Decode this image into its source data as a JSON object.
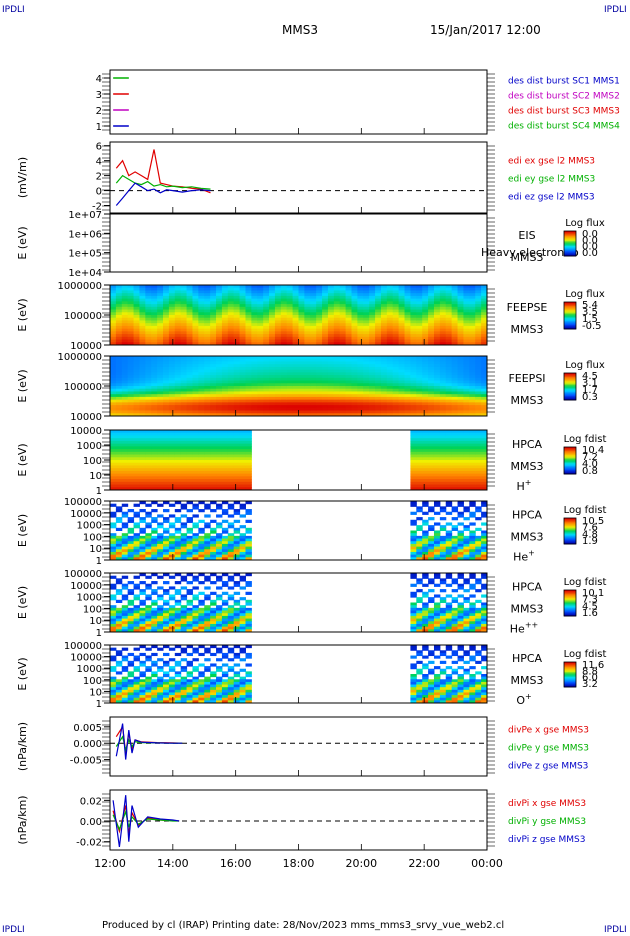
{
  "corner_left": "IPDLI",
  "corner_right": "IPDLI",
  "header": {
    "spacecraft": "MMS3",
    "date": "15/Jan/2017 12:00"
  },
  "footer": "Produced by cl (IRAP)   Printing date: 28/Nov/2023   mms_mms3_srvy_vue_web2.cl",
  "colors": {
    "red": "#e00000",
    "green": "#00b000",
    "blue": "#0000c8",
    "magenta": "#c000c0"
  },
  "chart_data": {
    "type": "line",
    "x_range": [
      "12:00",
      "00:00"
    ],
    "x_ticks": [
      "12:00",
      "14:00",
      "16:00",
      "18:00",
      "20:00",
      "22:00",
      "00:00"
    ],
    "panels": [
      {
        "id": "burst",
        "type": "line",
        "ylabel": "",
        "ylim": [
          0.5,
          4.5
        ],
        "yticks": [
          "4",
          "3",
          "2",
          "1"
        ],
        "legend": [
          {
            "text": "des dist burst SC1 MMS1",
            "color": "#0000c8"
          },
          {
            "text": "des dist burst SC2 MMS2",
            "color": "#c000c0"
          },
          {
            "text": "des dist burst SC3 MMS3",
            "color": "#e00000"
          },
          {
            "text": "des dist burst SC4 MMS4",
            "color": "#00b000"
          }
        ],
        "series": [
          {
            "name": "des dist burst SC4 MMS4",
            "color": "#00b000",
            "level": 4,
            "x": [
              12.1,
              12.6
            ]
          },
          {
            "name": "des dist burst SC3 MMS3",
            "color": "#e00000",
            "level": 3,
            "x": [
              12.1,
              12.6
            ]
          },
          {
            "name": "des dist burst SC2 MMS2",
            "color": "#c000c0",
            "level": 2,
            "x": [
              12.1,
              12.6
            ]
          },
          {
            "name": "des dist burst SC1 MMS1",
            "color": "#0000c8",
            "level": 1,
            "x": [
              12.1,
              12.6
            ]
          }
        ]
      },
      {
        "id": "edi",
        "type": "line",
        "ylabel": "(mV/m)",
        "ylim": [
          -3,
          6.5
        ],
        "yticks": [
          "6",
          "4",
          "2",
          "0",
          "-2"
        ],
        "legend": [
          {
            "text": "edi ex gse l2 MMS3",
            "color": "#e00000"
          },
          {
            "text": "edi ey gse l2 MMS3",
            "color": "#00b000"
          },
          {
            "text": "edi ez gse l2 MMS3",
            "color": "#0000c8"
          }
        ],
        "series": [
          {
            "name": "edi ex gse l2 MMS3",
            "color": "#e00000",
            "x": [
              12.2,
              12.4,
              12.6,
              12.8,
              13.0,
              13.2,
              13.4,
              13.6,
              13.8,
              14.0,
              14.3,
              14.6,
              14.9,
              15.2
            ],
            "y": [
              3,
              4,
              2,
              2.5,
              2,
              1.5,
              5.5,
              1,
              0.8,
              0.6,
              0.5,
              0.3,
              0.2,
              -0.3
            ]
          },
          {
            "name": "edi ey gse l2 MMS3",
            "color": "#00b000",
            "x": [
              12.2,
              12.4,
              12.6,
              12.8,
              13.0,
              13.2,
              13.4,
              13.6,
              13.8,
              14.0,
              14.3,
              14.6,
              14.9,
              15.2
            ],
            "y": [
              1,
              2,
              1.5,
              1,
              0.8,
              1.2,
              0.6,
              0.8,
              0.5,
              0.6,
              0.4,
              0.5,
              0.3,
              0.2
            ]
          },
          {
            "name": "edi ez gse l2 MMS3",
            "color": "#0000c8",
            "x": [
              12.2,
              12.4,
              12.6,
              12.8,
              13.0,
              13.2,
              13.4,
              13.6,
              13.8,
              14.0,
              14.3,
              14.6,
              14.9,
              15.2
            ],
            "y": [
              -2,
              -1,
              0,
              1,
              0.5,
              0,
              0.2,
              -0.3,
              0.1,
              0,
              -0.2,
              0,
              0.1,
              0
            ]
          }
        ]
      },
      {
        "id": "eis",
        "type": "heatmap",
        "ylabel": "E (eV)",
        "yticks": [
          "1e+07",
          "1e+06",
          "1e+05",
          "1e+04"
        ],
        "label_lines": [
          "EIS",
          "MMS3"
        ],
        "overlay": "Heavy electron to",
        "cbar_title": "Log flux",
        "cbar_ticks": [
          "0.0",
          "0.0",
          "0.0",
          "0.0"
        ],
        "empty": true
      },
      {
        "id": "feepse",
        "type": "heatmap",
        "ylabel": "E (eV)",
        "yticks": [
          "1000000",
          "100000",
          "10000"
        ],
        "label_lines": [
          "FEEPSE",
          "MMS3"
        ],
        "cbar_title": "Log flux",
        "cbar_ticks": [
          "5.4",
          "3.5",
          "1.5",
          "-0.5"
        ]
      },
      {
        "id": "feepsi",
        "type": "heatmap",
        "ylabel": "E (eV)",
        "yticks": [
          "1000000",
          "100000",
          "10000"
        ],
        "label_lines": [
          "FEEPSI",
          "MMS3"
        ],
        "cbar_title": "Log flux",
        "cbar_ticks": [
          "4.5",
          "3.1",
          "1.7",
          "0.3"
        ]
      },
      {
        "id": "hpca_h",
        "type": "heatmap",
        "ylabel": "E (eV)",
        "yticks": [
          "10000",
          "1000",
          "100",
          "10",
          "1"
        ],
        "label_lines": [
          "HPCA",
          "MMS3"
        ],
        "species": "H",
        "species_sup": "+",
        "cbar_title": "Log fdist",
        "cbar_ticks": [
          "10.4",
          "7.2",
          "4.0",
          "0.8"
        ],
        "data_ranges": [
          [
            "12:00",
            "16:30"
          ],
          [
            "21:30",
            "00:00"
          ]
        ]
      },
      {
        "id": "hpca_he",
        "type": "heatmap",
        "ylabel": "E (eV)",
        "yticks": [
          "100000",
          "10000",
          "1000",
          "100",
          "10",
          "1"
        ],
        "label_lines": [
          "HPCA",
          "MMS3"
        ],
        "species": "He",
        "species_sup": "+",
        "cbar_title": "Log fdist",
        "cbar_ticks": [
          "10.5",
          "7.6",
          "4.8",
          "1.9"
        ],
        "data_ranges": [
          [
            "12:00",
            "16:30"
          ],
          [
            "21:30",
            "00:00"
          ]
        ]
      },
      {
        "id": "hpca_hepp",
        "type": "heatmap",
        "ylabel": "E (eV)",
        "yticks": [
          "100000",
          "10000",
          "1000",
          "100",
          "10",
          "1"
        ],
        "label_lines": [
          "HPCA",
          "MMS3"
        ],
        "species": "He",
        "species_sup": "++",
        "cbar_title": "Log fdist",
        "cbar_ticks": [
          "10.1",
          "7.3",
          "4.5",
          "1.6"
        ],
        "data_ranges": [
          [
            "12:00",
            "16:30"
          ],
          [
            "21:30",
            "00:00"
          ]
        ]
      },
      {
        "id": "hpca_o",
        "type": "heatmap",
        "ylabel": "E (eV)",
        "yticks": [
          "100000",
          "10000",
          "1000",
          "100",
          "10",
          "1"
        ],
        "label_lines": [
          "HPCA",
          "MMS3"
        ],
        "species": "O",
        "species_sup": "+",
        "cbar_title": "Log fdist",
        "cbar_ticks": [
          "11.6",
          "8.8",
          "6.0",
          "3.2"
        ],
        "data_ranges": [
          [
            "12:00",
            "16:30"
          ],
          [
            "21:30",
            "00:00"
          ]
        ]
      },
      {
        "id": "divpe",
        "type": "line",
        "ylabel": "(nPa/km)",
        "ylim": [
          -0.01,
          0.008
        ],
        "yticks": [
          "0.005",
          "0.000",
          "-0.005"
        ],
        "legend": [
          {
            "text": "divPe x gse MMS3",
            "color": "#e00000"
          },
          {
            "text": "divPe y gse MMS3",
            "color": "#00b000"
          },
          {
            "text": "divPe z gse MMS3",
            "color": "#0000c8"
          }
        ],
        "series": [
          {
            "name": "divPe x gse MMS3",
            "color": "#e00000",
            "x": [
              12.2,
              12.4,
              12.5,
              12.6,
              12.7,
              12.8,
              13.0,
              13.5,
              14.0,
              14.3
            ],
            "y": [
              0.002,
              0.005,
              -0.003,
              0.003,
              -0.002,
              0.001,
              0.0004,
              0.0002,
              0.0001,
              0
            ]
          },
          {
            "name": "divPe y gse MMS3",
            "color": "#00b000",
            "x": [
              12.2,
              12.4,
              12.5,
              12.6,
              12.7,
              12.8,
              13.0,
              13.5,
              14.0,
              14.3
            ],
            "y": [
              -0.001,
              0.002,
              -0.002,
              0.001,
              -0.001,
              0.0005,
              0.0002,
              0.0001,
              0,
              0
            ]
          },
          {
            "name": "divPe z gse MMS3",
            "color": "#0000c8",
            "x": [
              12.2,
              12.4,
              12.5,
              12.6,
              12.7,
              12.8,
              13.0,
              13.5,
              14.0,
              14.3
            ],
            "y": [
              -0.004,
              0.006,
              -0.005,
              0.004,
              -0.003,
              0.001,
              0.0003,
              0.0001,
              0,
              0
            ]
          }
        ]
      },
      {
        "id": "divpi",
        "type": "line",
        "ylabel": "(nPa/km)",
        "ylim": [
          -0.028,
          0.03
        ],
        "yticks": [
          "0.02",
          "0.00",
          "-0.02"
        ],
        "legend": [
          {
            "text": "divPi x gse MMS3",
            "color": "#e00000"
          },
          {
            "text": "divPi y gse MMS3",
            "color": "#00b000"
          },
          {
            "text": "divPi z gse MMS3",
            "color": "#0000c8"
          }
        ],
        "series": [
          {
            "name": "divPi x gse MMS3",
            "color": "#e00000",
            "x": [
              12.1,
              12.3,
              12.5,
              12.6,
              12.7,
              12.9,
              13.2,
              13.6,
              14.0,
              14.2
            ],
            "y": [
              0.01,
              -0.01,
              0.015,
              -0.012,
              0.008,
              -0.004,
              0.003,
              0.001,
              0.0005,
              0
            ]
          },
          {
            "name": "divPi y gse MMS3",
            "color": "#00b000",
            "x": [
              12.1,
              12.3,
              12.5,
              12.6,
              12.7,
              12.9,
              13.2,
              13.6,
              14.0,
              14.2
            ],
            "y": [
              0.006,
              -0.008,
              0.009,
              -0.006,
              0.004,
              -0.003,
              0.002,
              0.001,
              0,
              0
            ]
          },
          {
            "name": "divPi z gse MMS3",
            "color": "#0000c8",
            "x": [
              12.1,
              12.3,
              12.5,
              12.6,
              12.7,
              12.9,
              13.2,
              13.6,
              14.0,
              14.2
            ],
            "y": [
              0.02,
              -0.025,
              0.025,
              -0.02,
              0.015,
              -0.006,
              0.004,
              0.002,
              0.001,
              0
            ]
          }
        ]
      }
    ]
  }
}
